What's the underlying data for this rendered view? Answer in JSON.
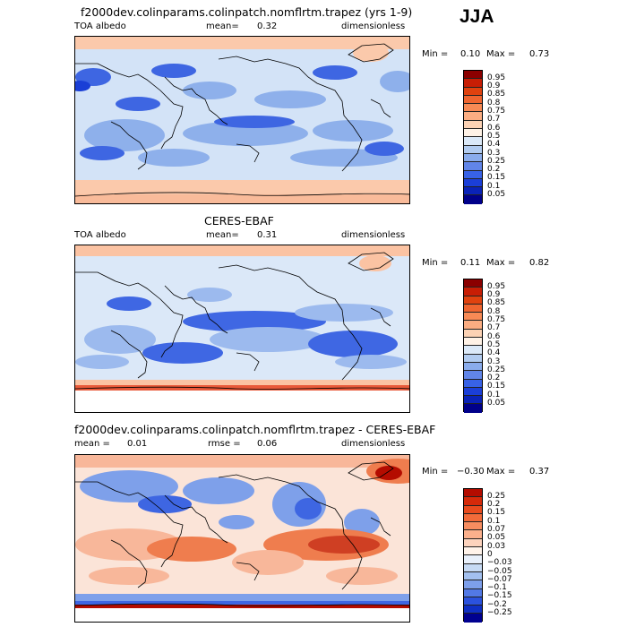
{
  "season": "JJA",
  "panels": [
    {
      "title": "f2000dev.colinparams.colinpatch.nomflrtm.trapez (yrs 1-9)",
      "left_label": "TOA albedo",
      "mean_label": "mean=",
      "mean_value": "0.32",
      "units": "dimensionless",
      "min_label": "Min =",
      "min_value": "0.10",
      "max_label": "Max =",
      "max_value": "0.73",
      "colorbar": {
        "labels": [
          "0.95",
          "0.9",
          "0.85",
          "0.8",
          "0.75",
          "0.7",
          "0.6",
          "0.5",
          "0.4",
          "0.3",
          "0.25",
          "0.2",
          "0.15",
          "0.1",
          "0.05"
        ],
        "colors": [
          "#8b0000",
          "#c81e05",
          "#e0420f",
          "#ef6530",
          "#f78a55",
          "#fbad82",
          "#fcd2b4",
          "#fff2e6",
          "#dbe9f8",
          "#b2ccf0",
          "#8aacec",
          "#6185e8",
          "#3862e6",
          "#1b3fd8",
          "#0a23b8",
          "#00008a"
        ]
      },
      "map_colors": {
        "base": "#d3e3f7",
        "mid": "#8eb0eb",
        "deep": "#3e66e2",
        "darkest": "#1a3fd6",
        "warm": "#fbc9ab",
        "warm_hot": "#f7a07a"
      }
    },
    {
      "title": "CERES-EBAF",
      "left_label": "TOA albedo",
      "mean_label": "mean=",
      "mean_value": "0.31",
      "units": "dimensionless",
      "min_label": "Min =",
      "min_value": "0.11",
      "max_label": "Max =",
      "max_value": "0.82",
      "colorbar": {
        "labels": [
          "0.95",
          "0.9",
          "0.85",
          "0.8",
          "0.75",
          "0.7",
          "0.6",
          "0.5",
          "0.4",
          "0.3",
          "0.25",
          "0.2",
          "0.15",
          "0.1",
          "0.05"
        ],
        "colors": [
          "#8b0000",
          "#c81e05",
          "#e0420f",
          "#ef6530",
          "#f78a55",
          "#fbad82",
          "#fcd2b4",
          "#fff2e6",
          "#dbe9f8",
          "#b2ccf0",
          "#8aacec",
          "#6185e8",
          "#3862e6",
          "#1b3fd8",
          "#0a23b8",
          "#00008a"
        ]
      },
      "map_colors": {
        "base": "#dbe8f8",
        "mid": "#9cbaee",
        "deep": "#3f67e3",
        "darkest": "#2248d8",
        "warm": "#fbc3a3",
        "warm_hot": "#e95a3a"
      }
    },
    {
      "title": "f2000dev.colinparams.colinpatch.nomflrtm.trapez - CERES-EBAF",
      "left_label": "mean =",
      "mean_label": "",
      "mean_value": "0.01",
      "rmse_label": "rmse =",
      "rmse_value": "0.06",
      "units": "dimensionless",
      "min_label": "Min =",
      "min_value": "−0.30",
      "max_label": "Max =",
      "max_value": "0.37",
      "colorbar": {
        "labels": [
          "0.25",
          "0.2",
          "0.15",
          "0.1",
          "0.07",
          "0.05",
          "0.03",
          "0",
          "−0.03",
          "−0.05",
          "−0.07",
          "−0.1",
          "−0.15",
          "−0.2",
          "−0.25"
        ],
        "colors": [
          "#b40c00",
          "#d62a0a",
          "#e94b1e",
          "#f26b3a",
          "#f78d60",
          "#fbb08c",
          "#fdd3bd",
          "#fff3ea",
          "#e8f0fb",
          "#c6daf4",
          "#a3c0ef",
          "#7d9feb",
          "#5279e6",
          "#2b52de",
          "#0f2fc4",
          "#000090"
        ]
      },
      "map_colors": {
        "base": "#fbe4d8",
        "mid": "#f8b79a",
        "deep": "#ef7d4e",
        "darkest": "#7ea0ea",
        "warm": "#3e66e2",
        "warm_hot": "#b40c00"
      }
    }
  ]
}
